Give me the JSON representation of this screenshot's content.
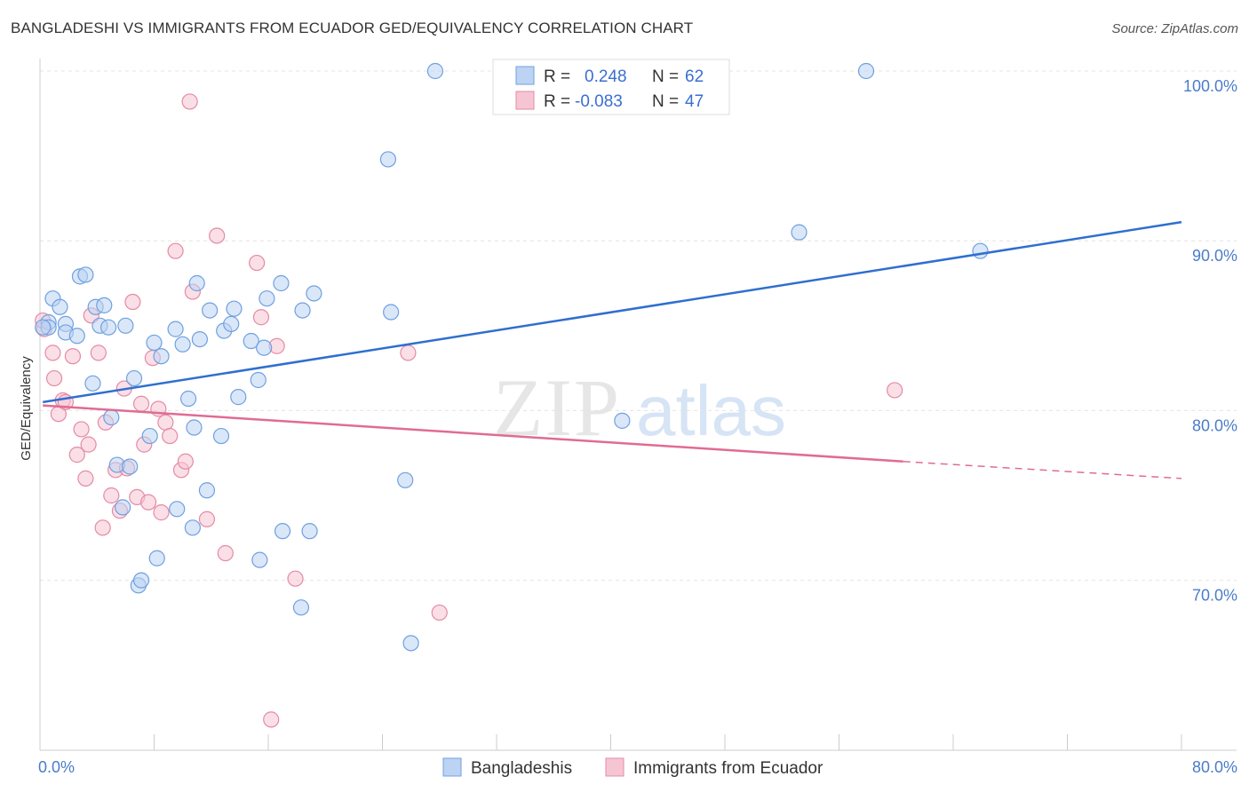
{
  "title": "BANGLADESHI VS IMMIGRANTS FROM ECUADOR GED/EQUIVALENCY CORRELATION CHART",
  "source": "Source: ZipAtlas.com",
  "watermark": {
    "zip": "ZIP",
    "atlas": "atlas"
  },
  "colors": {
    "blue": "#6fa0e0",
    "blue_fill": "#bcd3f3",
    "blue_line": "#2f6fcf",
    "pink": "#e58aa6",
    "pink_fill": "#f6c5d4",
    "pink_line": "#e06c93",
    "tick": "#4a7cc9"
  },
  "legend": {
    "rows": [
      {
        "r_label": "R =",
        "r_value": "0.248",
        "n_label": "N =",
        "n_value": "62"
      },
      {
        "r_label": "R =",
        "r_value": "-0.083",
        "n_label": "N =",
        "n_value": "47"
      }
    ]
  },
  "bottom_legend": [
    "Bangladeshis",
    "Immigrants from Ecuador"
  ],
  "chart_data": {
    "type": "scatter",
    "title": "BANGLADESHI VS IMMIGRANTS FROM ECUADOR GED/EQUIVALENCY CORRELATION CHART",
    "xlabel": "",
    "ylabel": "GED/Equivalency",
    "xlim": [
      0,
      80
    ],
    "ylim": [
      60,
      100
    ],
    "x_tick_labels": [
      "0.0%",
      "80.0%"
    ],
    "y_tick_labels": [
      "100.0%",
      "90.0%",
      "80.0%",
      "70.0%"
    ],
    "y_tick_values": [
      100,
      90,
      80,
      70
    ],
    "grid": true,
    "legend_position": "top-center",
    "series": [
      {
        "name": "Bangladeshis",
        "r": 0.248,
        "n": 62,
        "trend": {
          "x": [
            0.2,
            80
          ],
          "y": [
            80.5,
            91.1
          ]
        },
        "points": [
          [
            0.6,
            85.2
          ],
          [
            0.6,
            84.9
          ],
          [
            0.9,
            86.6
          ],
          [
            1.4,
            86.1
          ],
          [
            1.8,
            85.1
          ],
          [
            1.8,
            84.6
          ],
          [
            2.6,
            84.4
          ],
          [
            2.8,
            87.9
          ],
          [
            3.2,
            88.0
          ],
          [
            3.7,
            81.6
          ],
          [
            3.9,
            86.1
          ],
          [
            4.2,
            85.0
          ],
          [
            4.5,
            86.2
          ],
          [
            4.8,
            84.9
          ],
          [
            5.0,
            79.6
          ],
          [
            5.4,
            76.8
          ],
          [
            5.8,
            74.3
          ],
          [
            6.0,
            85.0
          ],
          [
            6.3,
            76.7
          ],
          [
            6.6,
            81.9
          ],
          [
            6.9,
            69.7
          ],
          [
            7.1,
            70.0
          ],
          [
            7.7,
            78.5
          ],
          [
            8.0,
            84.0
          ],
          [
            8.2,
            71.3
          ],
          [
            8.5,
            83.2
          ],
          [
            9.5,
            84.8
          ],
          [
            9.6,
            74.2
          ],
          [
            10.0,
            83.9
          ],
          [
            10.4,
            80.7
          ],
          [
            10.7,
            73.1
          ],
          [
            10.8,
            79.0
          ],
          [
            11.0,
            87.5
          ],
          [
            11.2,
            84.2
          ],
          [
            11.7,
            75.3
          ],
          [
            11.9,
            85.9
          ],
          [
            12.7,
            78.5
          ],
          [
            12.9,
            84.7
          ],
          [
            13.4,
            85.1
          ],
          [
            13.6,
            86.0
          ],
          [
            13.9,
            80.8
          ],
          [
            14.8,
            84.1
          ],
          [
            15.3,
            81.8
          ],
          [
            15.4,
            71.2
          ],
          [
            15.7,
            83.7
          ],
          [
            15.9,
            86.6
          ],
          [
            16.9,
            87.5
          ],
          [
            17.0,
            72.9
          ],
          [
            18.3,
            68.4
          ],
          [
            18.4,
            85.9
          ],
          [
            18.9,
            72.9
          ],
          [
            19.2,
            86.9
          ],
          [
            24.4,
            94.8
          ],
          [
            24.6,
            85.8
          ],
          [
            25.6,
            75.9
          ],
          [
            26.0,
            66.3
          ],
          [
            27.7,
            100.0
          ],
          [
            40.8,
            79.4
          ],
          [
            53.2,
            90.5
          ],
          [
            57.9,
            100.0
          ],
          [
            65.9,
            89.4
          ],
          [
            0.2,
            84.9
          ]
        ]
      },
      {
        "name": "Immigrants from Ecuador",
        "r": -0.083,
        "n": 47,
        "trend": {
          "x": [
            0.2,
            60.5
          ],
          "y": [
            80.3,
            77.0
          ],
          "dashed_to": [
            80,
            76.0
          ]
        },
        "points": [
          [
            0.3,
            84.8
          ],
          [
            0.9,
            83.4
          ],
          [
            1.0,
            81.9
          ],
          [
            1.3,
            79.8
          ],
          [
            1.6,
            80.6
          ],
          [
            1.8,
            80.5
          ],
          [
            2.3,
            83.2
          ],
          [
            2.6,
            77.4
          ],
          [
            2.9,
            78.9
          ],
          [
            3.2,
            76.0
          ],
          [
            3.4,
            78.0
          ],
          [
            3.6,
            85.6
          ],
          [
            4.1,
            83.4
          ],
          [
            4.4,
            73.1
          ],
          [
            4.6,
            79.3
          ],
          [
            5.0,
            75.0
          ],
          [
            5.3,
            76.5
          ],
          [
            5.6,
            74.1
          ],
          [
            5.9,
            81.3
          ],
          [
            6.1,
            76.6
          ],
          [
            6.5,
            86.4
          ],
          [
            6.8,
            74.9
          ],
          [
            7.1,
            80.4
          ],
          [
            7.3,
            78.0
          ],
          [
            7.6,
            74.6
          ],
          [
            7.9,
            83.1
          ],
          [
            8.3,
            80.1
          ],
          [
            8.5,
            74.0
          ],
          [
            8.8,
            79.3
          ],
          [
            9.1,
            78.5
          ],
          [
            9.5,
            89.4
          ],
          [
            9.9,
            76.5
          ],
          [
            10.2,
            77.0
          ],
          [
            10.5,
            98.2
          ],
          [
            10.7,
            87.0
          ],
          [
            11.7,
            73.6
          ],
          [
            12.4,
            90.3
          ],
          [
            13.0,
            71.6
          ],
          [
            15.2,
            88.7
          ],
          [
            15.5,
            85.5
          ],
          [
            16.6,
            83.8
          ],
          [
            16.2,
            61.8
          ],
          [
            17.9,
            70.1
          ],
          [
            25.8,
            83.4
          ],
          [
            28.0,
            68.1
          ],
          [
            59.9,
            81.2
          ],
          [
            0.2,
            85.3
          ]
        ]
      }
    ]
  }
}
